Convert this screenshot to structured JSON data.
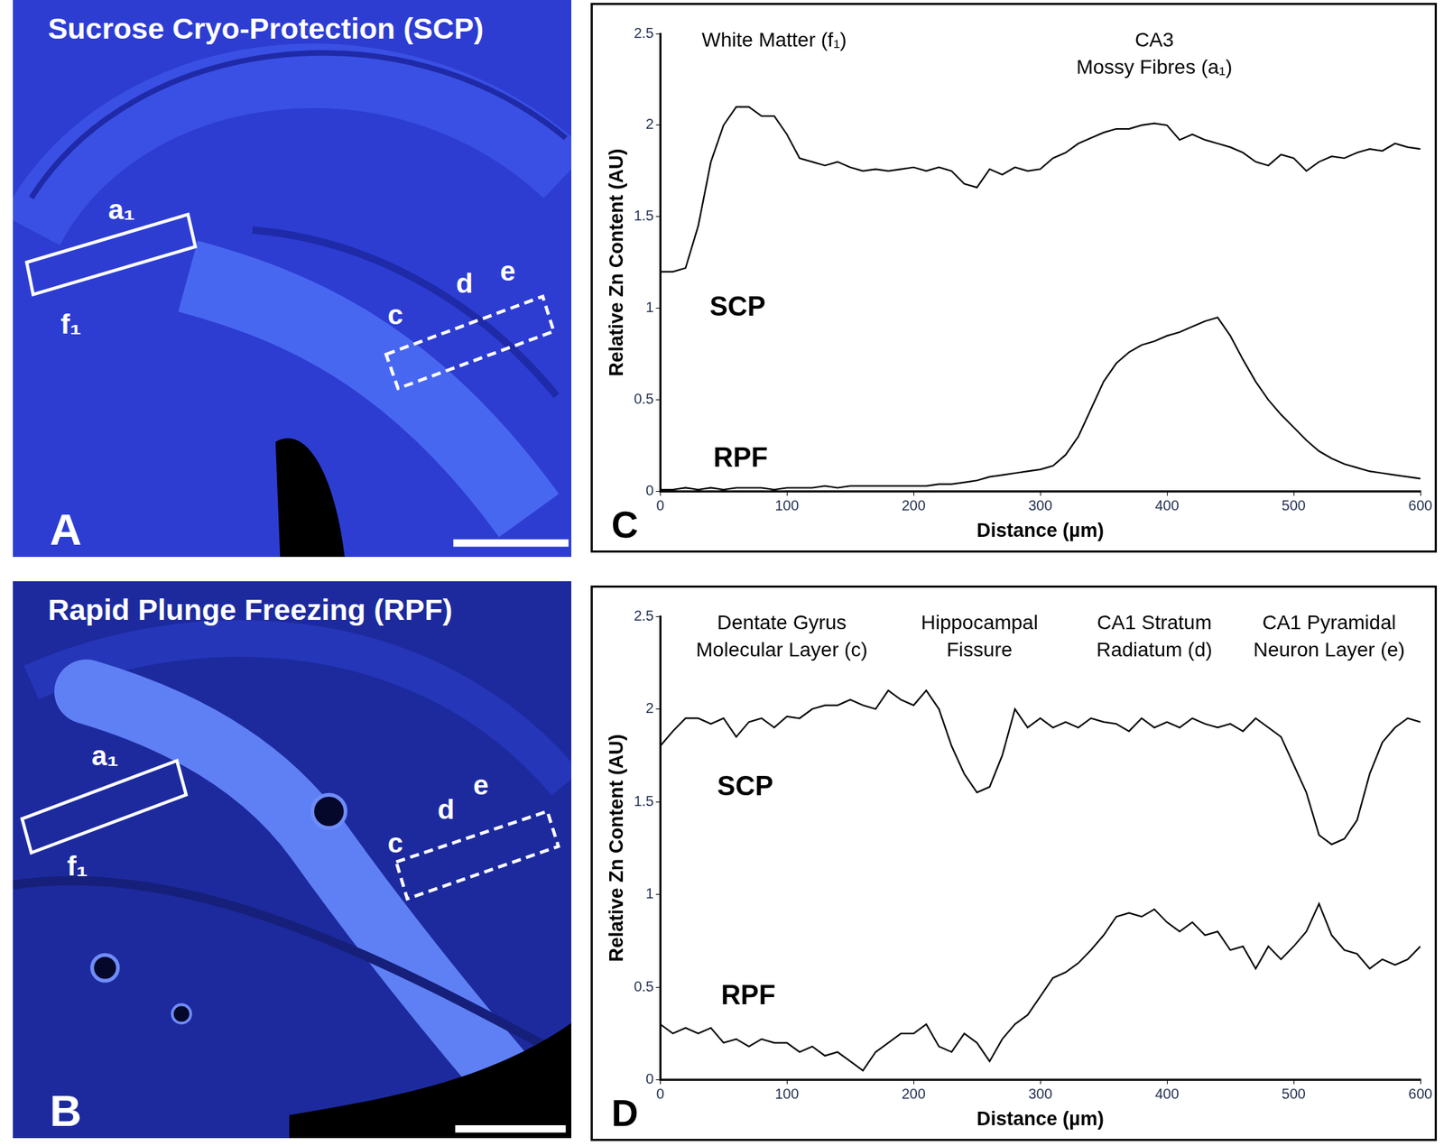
{
  "images": [
    {
      "panel": "A",
      "title": "Sucrose Cryo-Protection (SCP)",
      "region_labels": [
        "a₁",
        "f₁",
        "c",
        "d",
        "e"
      ]
    },
    {
      "panel": "B",
      "title": "Rapid Plunge Freezing (RPF)",
      "region_labels": [
        "a₁",
        "f₁",
        "c",
        "d",
        "e"
      ]
    }
  ],
  "chart_data": [
    {
      "type": "line",
      "panel": "C",
      "x_label": "Distance (µm)",
      "y_label": "Relative Zn Content (AU)",
      "annotations": [
        [
          "White Matter (f₁)"
        ],
        [
          "CA3",
          "Mossy Fibres (a₁)"
        ]
      ],
      "xlim": [
        0,
        600
      ],
      "xticks": [
        0,
        100,
        200,
        300,
        400,
        500,
        600
      ],
      "ylim": [
        0,
        2.5
      ],
      "yticks": [
        0,
        0.5,
        1,
        1.5,
        2,
        2.5
      ],
      "grid": false,
      "x": [
        0,
        10,
        20,
        30,
        40,
        50,
        60,
        70,
        80,
        90,
        100,
        110,
        120,
        130,
        140,
        150,
        160,
        170,
        180,
        190,
        200,
        210,
        220,
        230,
        240,
        250,
        260,
        270,
        280,
        290,
        300,
        310,
        320,
        330,
        340,
        350,
        360,
        370,
        380,
        390,
        400,
        410,
        420,
        430,
        440,
        450,
        460,
        470,
        480,
        490,
        500,
        510,
        520,
        530,
        540,
        550,
        560,
        570,
        580,
        590,
        600
      ],
      "series": [
        {
          "name": "SCP",
          "color": "#000000",
          "values": [
            1.2,
            1.2,
            1.22,
            1.45,
            1.8,
            2.0,
            2.1,
            2.1,
            2.05,
            2.05,
            1.95,
            1.82,
            1.8,
            1.78,
            1.8,
            1.77,
            1.75,
            1.76,
            1.75,
            1.76,
            1.77,
            1.75,
            1.77,
            1.75,
            1.68,
            1.66,
            1.76,
            1.73,
            1.77,
            1.75,
            1.76,
            1.82,
            1.85,
            1.9,
            1.93,
            1.96,
            1.98,
            1.98,
            2.0,
            2.01,
            2.0,
            1.92,
            1.95,
            1.92,
            1.9,
            1.88,
            1.85,
            1.8,
            1.78,
            1.84,
            1.82,
            1.75,
            1.8,
            1.83,
            1.82,
            1.85,
            1.87,
            1.86,
            1.9,
            1.88,
            1.87
          ]
        },
        {
          "name": "RPF",
          "color": "#000000",
          "values": [
            0.01,
            0.01,
            0.02,
            0.01,
            0.02,
            0.01,
            0.02,
            0.02,
            0.02,
            0.01,
            0.02,
            0.02,
            0.02,
            0.03,
            0.02,
            0.03,
            0.03,
            0.03,
            0.03,
            0.03,
            0.03,
            0.03,
            0.04,
            0.04,
            0.05,
            0.06,
            0.08,
            0.09,
            0.1,
            0.11,
            0.12,
            0.14,
            0.2,
            0.3,
            0.45,
            0.6,
            0.7,
            0.76,
            0.8,
            0.82,
            0.85,
            0.87,
            0.9,
            0.93,
            0.95,
            0.85,
            0.72,
            0.6,
            0.5,
            0.42,
            0.35,
            0.28,
            0.22,
            0.18,
            0.15,
            0.13,
            0.11,
            0.1,
            0.09,
            0.08,
            0.07
          ]
        }
      ]
    },
    {
      "type": "line",
      "panel": "D",
      "x_label": "Distance (µm)",
      "y_label": "Relative Zn Content (AU)",
      "annotations": [
        [
          "Dentate Gyrus",
          "Molecular Layer (c)"
        ],
        [
          "Hippocampal",
          "Fissure"
        ],
        [
          "CA1 Stratum",
          "Radiatum (d)"
        ],
        [
          "CA1 Pyramidal",
          "Neuron Layer (e)"
        ]
      ],
      "xlim": [
        0,
        600
      ],
      "xticks": [
        0,
        100,
        200,
        300,
        400,
        500,
        600
      ],
      "ylim": [
        0,
        2.5
      ],
      "yticks": [
        0,
        0.5,
        1,
        1.5,
        2,
        2.5
      ],
      "grid": false,
      "x": [
        0,
        10,
        20,
        30,
        40,
        50,
        60,
        70,
        80,
        90,
        100,
        110,
        120,
        130,
        140,
        150,
        160,
        170,
        180,
        190,
        200,
        210,
        220,
        230,
        240,
        250,
        260,
        270,
        280,
        290,
        300,
        310,
        320,
        330,
        340,
        350,
        360,
        370,
        380,
        390,
        400,
        410,
        420,
        430,
        440,
        450,
        460,
        470,
        480,
        490,
        500,
        510,
        520,
        530,
        540,
        550,
        560,
        570,
        580,
        590,
        600
      ],
      "series": [
        {
          "name": "SCP",
          "color": "#000000",
          "values": [
            1.8,
            1.88,
            1.95,
            1.95,
            1.92,
            1.95,
            1.85,
            1.93,
            1.95,
            1.9,
            1.96,
            1.95,
            2.0,
            2.02,
            2.02,
            2.05,
            2.02,
            2.0,
            2.1,
            2.05,
            2.02,
            2.1,
            2.0,
            1.8,
            1.65,
            1.55,
            1.58,
            1.75,
            2.0,
            1.9,
            1.95,
            1.9,
            1.93,
            1.9,
            1.95,
            1.93,
            1.92,
            1.88,
            1.95,
            1.9,
            1.93,
            1.9,
            1.95,
            1.92,
            1.9,
            1.92,
            1.88,
            1.95,
            1.9,
            1.85,
            1.7,
            1.55,
            1.32,
            1.27,
            1.3,
            1.4,
            1.65,
            1.82,
            1.9,
            1.95,
            1.93
          ]
        },
        {
          "name": "RPF",
          "color": "#000000",
          "values": [
            0.3,
            0.25,
            0.28,
            0.25,
            0.28,
            0.2,
            0.22,
            0.18,
            0.22,
            0.2,
            0.2,
            0.15,
            0.18,
            0.13,
            0.15,
            0.1,
            0.05,
            0.15,
            0.2,
            0.25,
            0.25,
            0.3,
            0.18,
            0.15,
            0.25,
            0.2,
            0.1,
            0.22,
            0.3,
            0.35,
            0.45,
            0.55,
            0.58,
            0.63,
            0.7,
            0.78,
            0.88,
            0.9,
            0.88,
            0.92,
            0.85,
            0.8,
            0.85,
            0.78,
            0.8,
            0.7,
            0.72,
            0.6,
            0.72,
            0.65,
            0.72,
            0.8,
            0.95,
            0.78,
            0.7,
            0.68,
            0.6,
            0.65,
            0.62,
            0.65,
            0.72
          ]
        }
      ]
    }
  ]
}
